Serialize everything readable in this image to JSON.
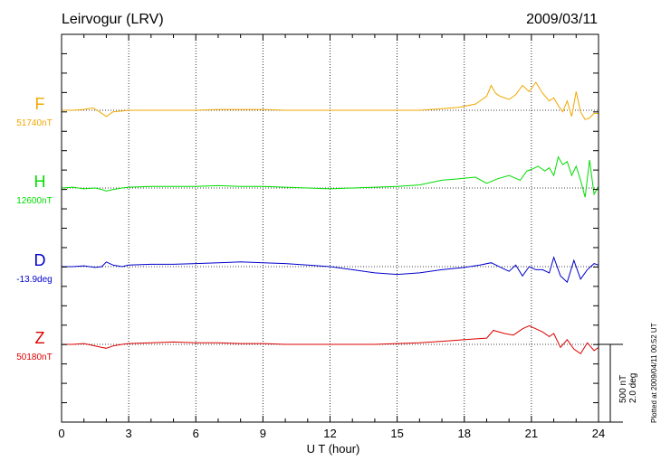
{
  "chart_data": {
    "type": "line",
    "title": "Leirvogur (LRV)",
    "date": "2009/03/11",
    "xlabel": "U T (hour)",
    "xlim": [
      0,
      24
    ],
    "x_ticks": [
      "0",
      "3",
      "6",
      "9",
      "12",
      "15",
      "18",
      "21",
      "24"
    ],
    "grid": true,
    "scale_labels": [
      "500 nT",
      "2.0 deg"
    ],
    "footer": "Plotted at 2009/04/11 00:52 UT",
    "scale": {
      "nT_per_division": 500,
      "deg_per_division": 2.0
    },
    "series": [
      {
        "name": "F",
        "baseline": "51740nT",
        "color": "#f0a800",
        "x": [
          0,
          0.5,
          1,
          1.4,
          1.7,
          2,
          2.3,
          2.7,
          3,
          4,
          5,
          6,
          7,
          8,
          9,
          10,
          11,
          12,
          13,
          14,
          15,
          16,
          17,
          17.8,
          18.5,
          19,
          19.2,
          19.4,
          19.6,
          20,
          20.3,
          20.6,
          20.9,
          21.2,
          21.5,
          21.8,
          22,
          22.2,
          22.4,
          22.6,
          22.8,
          23,
          23.2,
          23.4,
          23.6,
          23.8,
          24
        ],
        "y": [
          0,
          0,
          5,
          15,
          -10,
          -40,
          -10,
          -5,
          0,
          0,
          0,
          0,
          5,
          5,
          5,
          0,
          0,
          0,
          0,
          0,
          0,
          0,
          10,
          20,
          40,
          90,
          160,
          110,
          90,
          70,
          100,
          160,
          120,
          180,
          110,
          60,
          80,
          30,
          -10,
          60,
          -40,
          120,
          -10,
          -60,
          -50,
          -20,
          -20
        ]
      },
      {
        "name": "H",
        "baseline": "12600nT",
        "color": "#00dd00",
        "x": [
          0,
          0.5,
          1,
          1.5,
          1.8,
          2,
          2.3,
          2.7,
          3,
          4,
          5,
          6,
          7,
          8,
          9,
          10,
          11,
          12,
          13,
          14,
          15,
          16,
          17,
          17.8,
          18.5,
          19,
          19.5,
          20,
          20.5,
          20.8,
          21,
          21.3,
          21.6,
          21.8,
          22,
          22.2,
          22.4,
          22.6,
          22.8,
          23,
          23.2,
          23.4,
          23.6,
          23.8,
          24
        ],
        "y": [
          0,
          5,
          -5,
          0,
          -10,
          -20,
          -10,
          0,
          5,
          10,
          10,
          10,
          15,
          10,
          10,
          5,
          0,
          -5,
          0,
          5,
          10,
          20,
          50,
          60,
          70,
          30,
          60,
          80,
          50,
          110,
          120,
          140,
          110,
          130,
          80,
          200,
          150,
          170,
          80,
          140,
          50,
          -60,
          180,
          -40,
          10
        ]
      },
      {
        "name": "D",
        "baseline": "-13.9deg",
        "color": "#0000cc",
        "x": [
          0,
          0.5,
          1,
          1.5,
          1.8,
          2,
          2.3,
          2.7,
          3,
          4,
          5,
          6,
          7,
          8,
          9,
          10,
          11,
          12,
          13,
          14,
          15,
          16,
          17,
          18,
          18.7,
          19.2,
          19.7,
          20,
          20.3,
          20.6,
          20.9,
          21.2,
          21.5,
          21.8,
          22,
          22.3,
          22.6,
          22.9,
          23.2,
          23.5,
          23.8,
          24
        ],
        "y": [
          0,
          0,
          5,
          -5,
          0,
          30,
          10,
          0,
          10,
          15,
          15,
          20,
          25,
          30,
          25,
          20,
          10,
          0,
          -20,
          -40,
          -50,
          -40,
          -20,
          -5,
          10,
          25,
          -10,
          -30,
          10,
          -60,
          0,
          -20,
          -20,
          -40,
          60,
          -60,
          -100,
          40,
          -80,
          -20,
          20,
          10
        ]
      },
      {
        "name": "Z",
        "baseline": "50180nT",
        "color": "#dd0000",
        "x": [
          0,
          0.5,
          1,
          1.5,
          1.8,
          2,
          2.3,
          2.7,
          3,
          4,
          5,
          6,
          7,
          8,
          9,
          10,
          11,
          12,
          13,
          14,
          15,
          16,
          17,
          18,
          19,
          19.3,
          19.8,
          20.2,
          20.6,
          20.9,
          21.2,
          21.5,
          21.8,
          22,
          22.3,
          22.6,
          22.9,
          23.2,
          23.5,
          23.8,
          24
        ],
        "y": [
          0,
          0,
          5,
          -10,
          -20,
          -25,
          -10,
          0,
          5,
          10,
          15,
          10,
          10,
          5,
          5,
          0,
          0,
          0,
          0,
          0,
          5,
          10,
          20,
          30,
          40,
          90,
          70,
          60,
          100,
          120,
          100,
          80,
          50,
          70,
          -20,
          30,
          -30,
          -60,
          10,
          -40,
          -20
        ]
      }
    ]
  }
}
